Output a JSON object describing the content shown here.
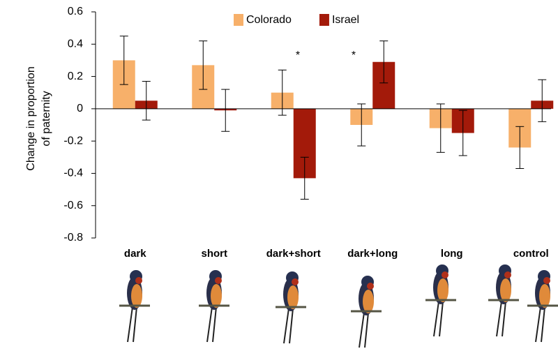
{
  "chart_data": {
    "type": "bar",
    "ylabel": [
      "Change in proportion",
      "of paternity"
    ],
    "categories": [
      "dark",
      "short",
      "dark+short",
      "dark+long",
      "long",
      "control"
    ],
    "series": [
      {
        "name": "Colorado",
        "color": "#f7b06a",
        "values": [
          0.3,
          0.27,
          0.1,
          -0.1,
          -0.12,
          -0.24
        ],
        "errors": [
          0.15,
          0.15,
          0.14,
          0.13,
          0.15,
          0.13
        ]
      },
      {
        "name": "Israel",
        "color": "#a31a0a",
        "values": [
          0.05,
          -0.01,
          -0.43,
          0.29,
          -0.15,
          0.05
        ],
        "errors": [
          0.12,
          0.13,
          0.13,
          0.13,
          0.14,
          0.13
        ]
      }
    ],
    "annotations": [
      "*",
      "*"
    ],
    "ylim": [
      -0.8,
      0.6
    ],
    "yticks": [
      -0.8,
      -0.6,
      -0.4,
      -0.2,
      0,
      0.2,
      0.4,
      0.6
    ],
    "legend": "top"
  }
}
